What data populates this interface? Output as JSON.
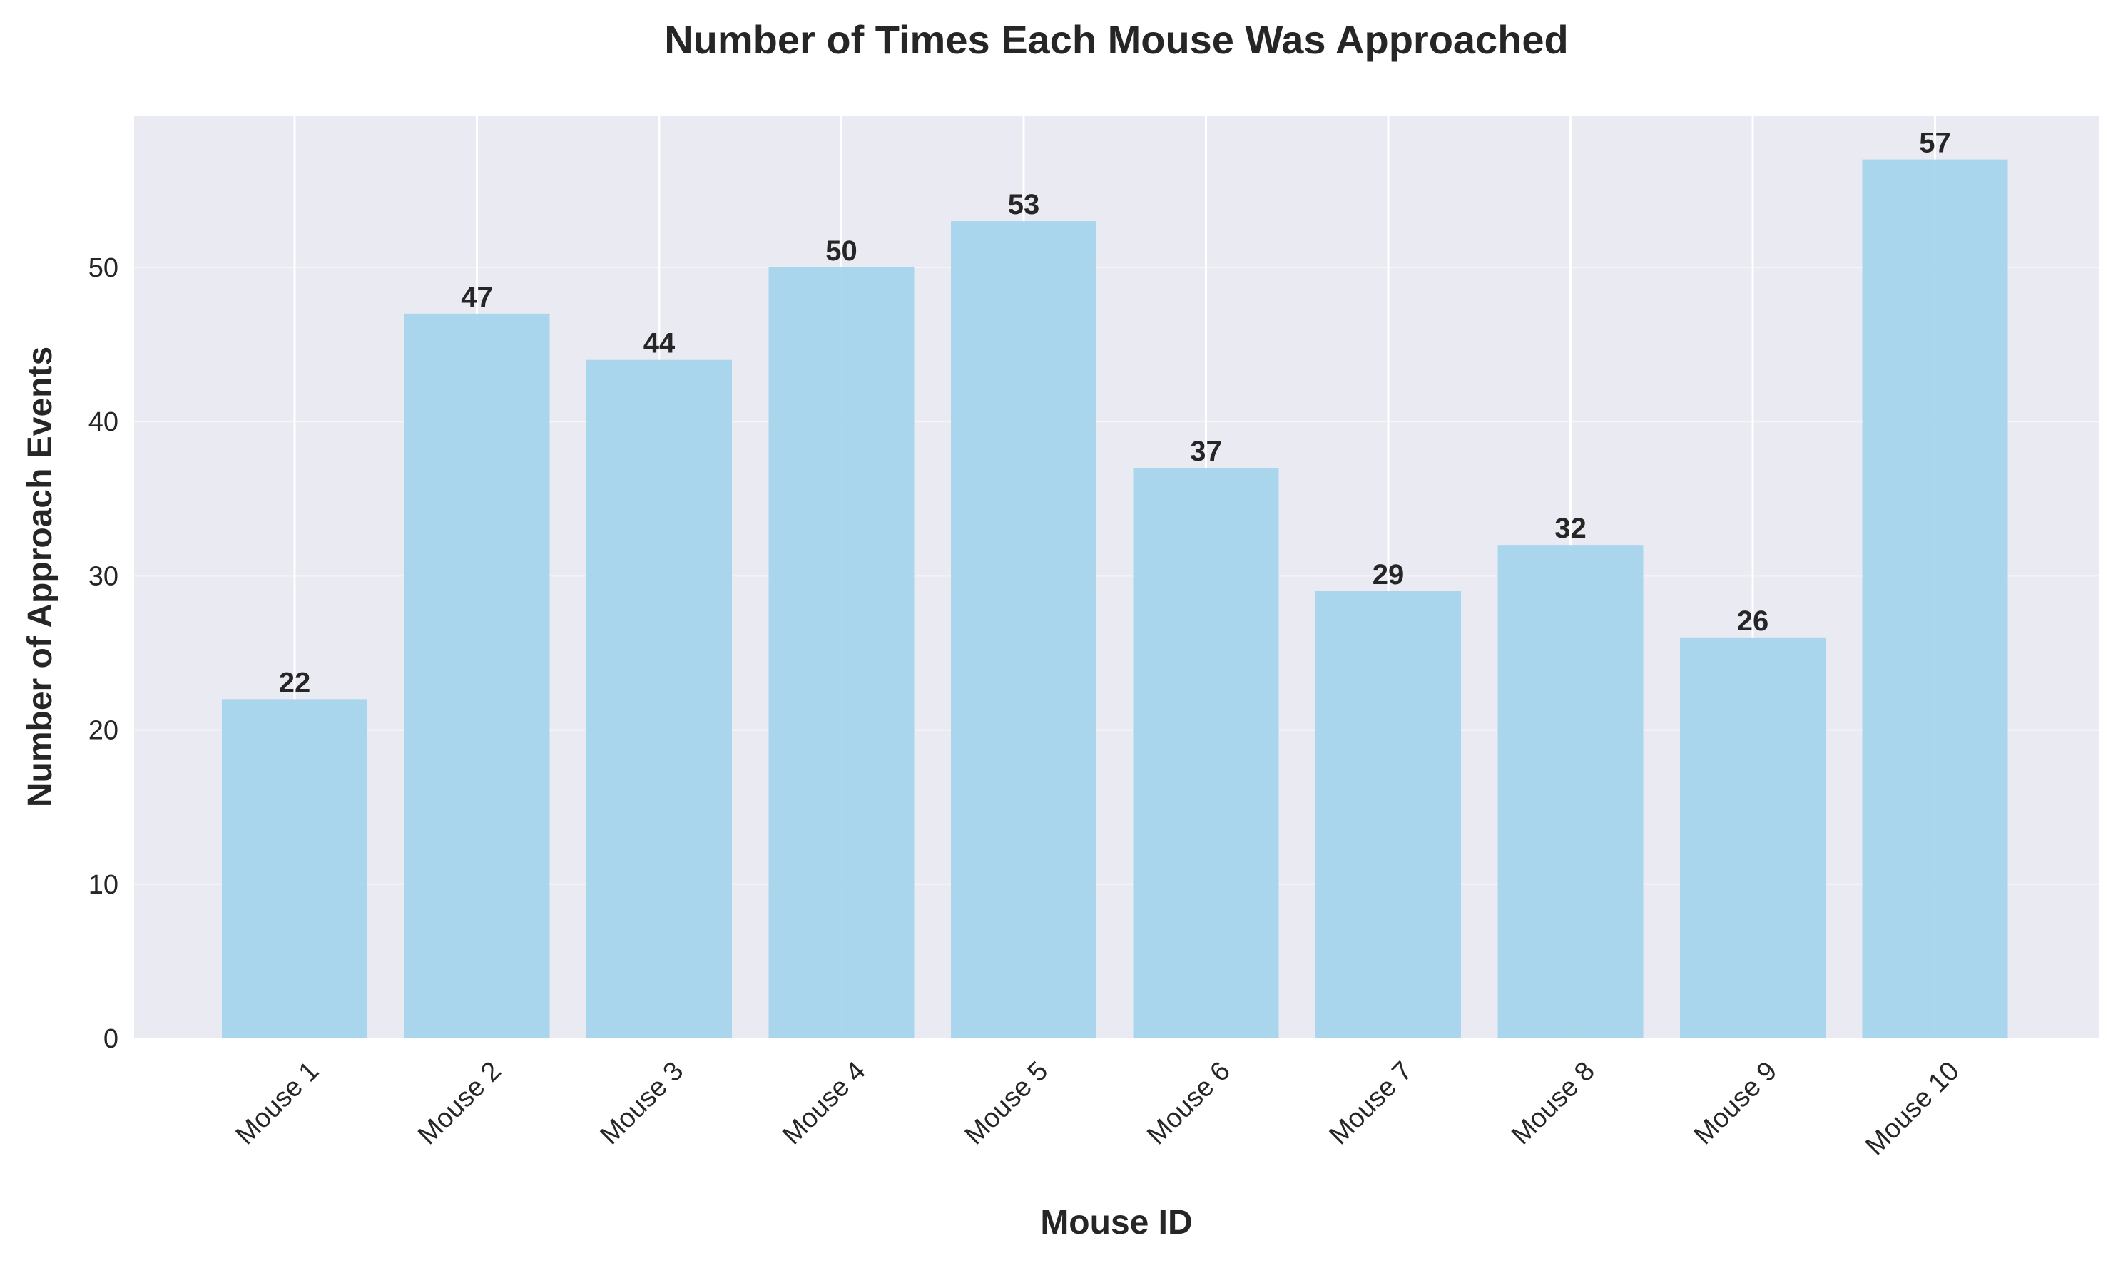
{
  "chart_data": {
    "type": "bar",
    "title": "Number of Times Each Mouse Was Approached",
    "xlabel": "Mouse ID",
    "ylabel": "Number of Approach Events",
    "categories": [
      "Mouse 1",
      "Mouse 2",
      "Mouse 3",
      "Mouse 4",
      "Mouse 5",
      "Mouse 6",
      "Mouse 7",
      "Mouse 8",
      "Mouse 9",
      "Mouse 10"
    ],
    "values": [
      22,
      47,
      44,
      50,
      53,
      37,
      29,
      32,
      26,
      57
    ],
    "yticks": [
      0,
      10,
      20,
      30,
      40,
      50
    ],
    "ylim": [
      0,
      59.85
    ],
    "grid": true,
    "colors": {
      "bar": "#a6d5ec",
      "plot_background": "#eaeaf2",
      "grid": "#ffffff",
      "text": "#262626"
    }
  }
}
